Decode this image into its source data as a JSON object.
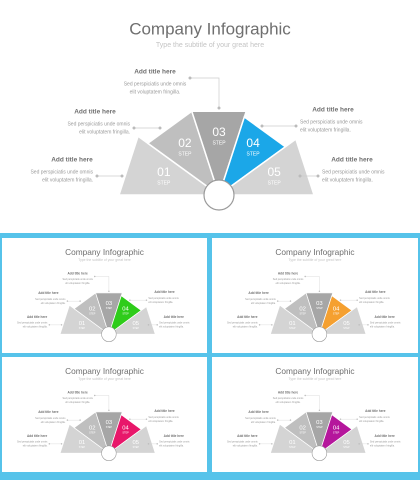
{
  "content": {
    "title": "Company Infographic",
    "subtitle": "Type the subtitle of your great here",
    "callouts": [
      {
        "title": "Add title here",
        "text": [
          "Sed perspiciatis unde omnis",
          "elit voluptatem fringilla."
        ]
      },
      {
        "title": "Add title here",
        "text": [
          "Sed perspiciatis unde omnis",
          "elit voluptatem fringilla."
        ]
      },
      {
        "title": "Add title here",
        "text": [
          "Sed perspiciatis unde omnis",
          "elit voluptatem fringilla."
        ]
      },
      {
        "title": "Add title here",
        "text": [
          "Sed perspiciatis unde omnis",
          "elit voluptatem fringilla."
        ]
      },
      {
        "title": "Add title here",
        "text": [
          "Sed perspiciatis unde omnis",
          "elit voluptatem fringilla."
        ]
      }
    ],
    "segments": [
      {
        "number": "01",
        "label": "STEP",
        "color": "#d4d4d4"
      },
      {
        "number": "02",
        "label": "STEP",
        "color": "#bfbfbf"
      },
      {
        "number": "03",
        "label": "STEP",
        "color": "#a6a6a6"
      },
      {
        "number": "04",
        "label": "STEP",
        "color": "#1ba7e8"
      },
      {
        "number": "05",
        "label": "STEP",
        "color": "#d4d4d4"
      }
    ]
  },
  "slides": [
    {
      "accent": "#1ba7e8"
    },
    {
      "accent": "#2ecc1a"
    },
    {
      "accent": "#f5a030"
    },
    {
      "accent": "#e8176a"
    },
    {
      "accent": "#b5169c"
    }
  ]
}
